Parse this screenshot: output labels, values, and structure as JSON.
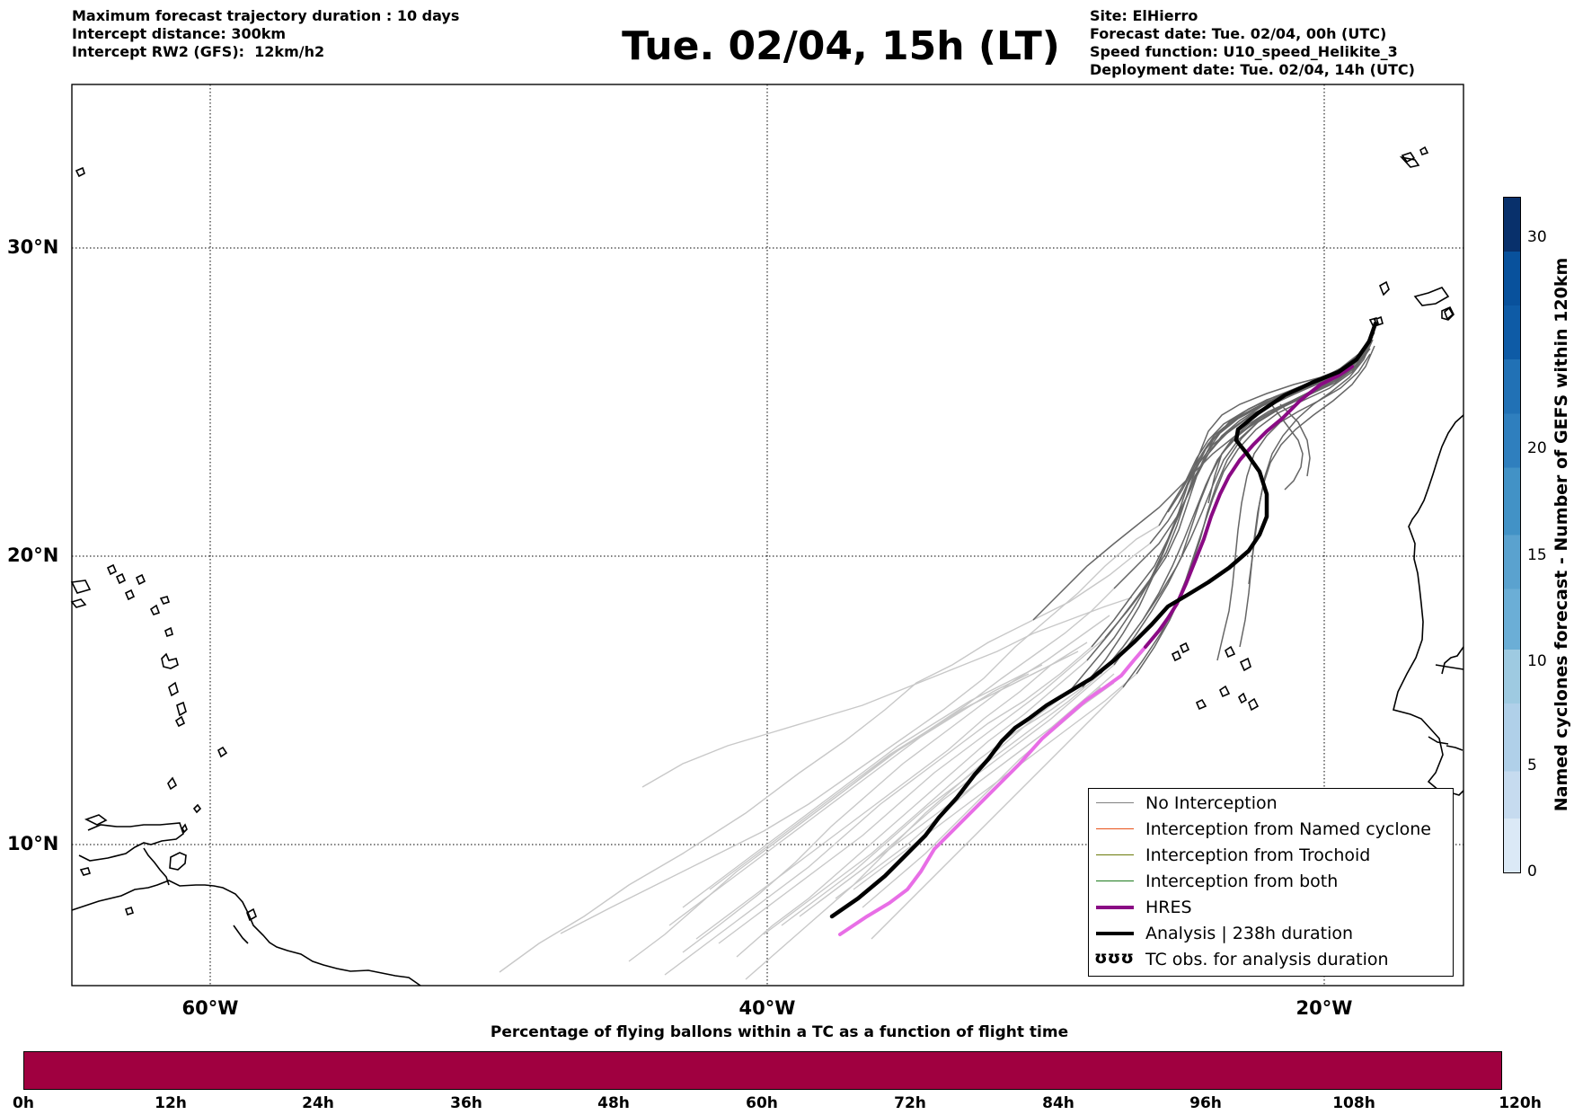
{
  "header": {
    "left_lines": [
      "Maximum forecast trajectory duration : 10 days",
      "Intercept distance: 300km",
      "Intercept RW2 (GFS):  12km/h2"
    ],
    "title": "Tue. 02/04, 15h (LT)",
    "right_lines": [
      "Site: ElHierro",
      "Forecast date: Tue. 02/04, 00h (UTC)",
      "Speed function: U10_speed_Helikite_3",
      "Deployment date: Tue. 02/04, 14h (UTC)"
    ]
  },
  "map": {
    "lat_labels": [
      "30°N",
      "20°N",
      "10°N"
    ],
    "lon_labels": [
      "60°W",
      "40°W",
      "20°W"
    ],
    "colors": {
      "no_interception_ens": "#666666",
      "no_interception_light": "#c8c8c8",
      "named_cyclone": "#e8521a",
      "trochoid": "#6b7a0a",
      "both": "#1e7b1e",
      "hres_dark": "#8a0a84",
      "hres_light": "#e86ee6",
      "analysis": "#000000"
    }
  },
  "legend": {
    "items": [
      {
        "label": "No Interception",
        "color": "#808080"
      },
      {
        "label": "Interception from Named cyclone",
        "color": "#e8521a"
      },
      {
        "label": "Interception from Trochoid",
        "color": "#6b7a0a"
      },
      {
        "label": "Interception from both",
        "color": "#1e7b1e"
      },
      {
        "label": "HRES",
        "color": "#8a0a84"
      },
      {
        "label": "Analysis | 238h duration",
        "color": "#000000"
      },
      {
        "label": "TC obs. for analysis duration",
        "symbol": "ʊʊʊ"
      }
    ]
  },
  "vertical_colorbar": {
    "title": "Named cyclones forecast - Number of GEFS within 120km",
    "ticks": [
      "30",
      "20",
      "15",
      "10",
      "5",
      "0"
    ],
    "colors": [
      "#dbe9f6",
      "#bcd7ee",
      "#9ecae1",
      "#6baed6",
      "#4292c6",
      "#2171b5",
      "#08519c",
      "#08306b"
    ]
  },
  "horizontal_colorbar": {
    "title": "Percentage of flying ballons within a TC as a function of flight time",
    "labels": [
      "0h",
      "12h",
      "24h",
      "36h",
      "48h",
      "60h",
      "72h",
      "84h",
      "96h",
      "108h",
      "120h"
    ],
    "color": "#a00040"
  }
}
